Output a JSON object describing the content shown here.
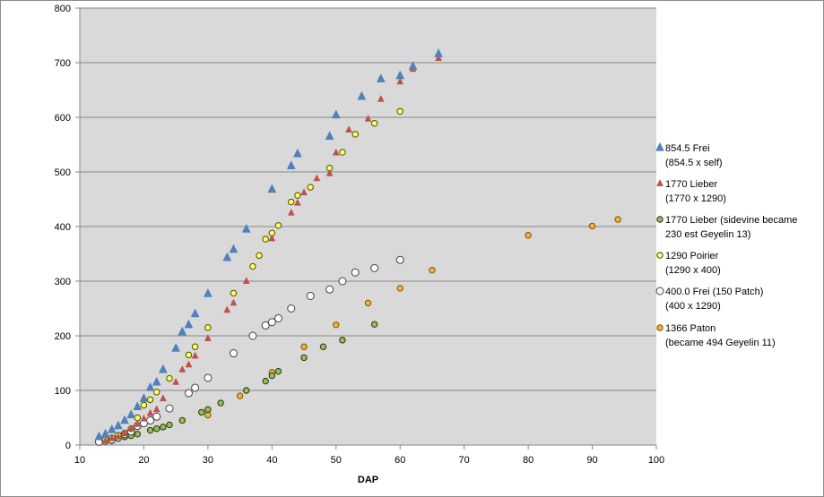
{
  "chart_data": {
    "type": "scatter",
    "title": "",
    "xlabel": "DAP",
    "ylabel": "",
    "xlim": [
      10,
      100
    ],
    "ylim": [
      0,
      800
    ],
    "x_ticks": [
      10,
      20,
      30,
      40,
      50,
      60,
      70,
      80,
      90,
      100
    ],
    "y_ticks": [
      0,
      100,
      200,
      300,
      400,
      500,
      600,
      700,
      800
    ],
    "grid": "horizontal",
    "plot_background": "#d9d9d9",
    "legend_position": "right",
    "series": [
      {
        "name_lines": [
          "854.5 Frei",
          "(854.5 x self)"
        ],
        "marker": "triangle",
        "fill": "#4f81bd",
        "stroke": "#4f81bd",
        "points": [
          [
            13,
            15
          ],
          [
            14,
            20
          ],
          [
            15,
            28
          ],
          [
            16,
            35
          ],
          [
            17,
            45
          ],
          [
            18,
            55
          ],
          [
            19,
            70
          ],
          [
            20,
            85
          ],
          [
            21,
            105
          ],
          [
            22,
            115
          ],
          [
            23,
            138
          ],
          [
            25,
            177
          ],
          [
            26,
            207
          ],
          [
            27,
            220
          ],
          [
            28,
            240
          ],
          [
            30,
            277
          ],
          [
            33,
            343
          ],
          [
            34,
            358
          ],
          [
            36,
            395
          ],
          [
            40,
            468
          ],
          [
            43,
            511
          ],
          [
            44,
            533
          ],
          [
            49,
            565
          ],
          [
            50,
            604
          ],
          [
            54,
            638
          ],
          [
            57,
            670
          ],
          [
            60,
            676
          ],
          [
            62,
            693
          ],
          [
            66,
            716
          ]
        ]
      },
      {
        "name_lines": [
          "1770 Lieber",
          "(1770 x 1290)"
        ],
        "marker": "triangle-small",
        "fill": "#c0504d",
        "stroke": "#c0504d",
        "points": [
          [
            14,
            8
          ],
          [
            15,
            12
          ],
          [
            16,
            15
          ],
          [
            17,
            22
          ],
          [
            18,
            30
          ],
          [
            19,
            38
          ],
          [
            20,
            48
          ],
          [
            21,
            58
          ],
          [
            22,
            65
          ],
          [
            23,
            85
          ],
          [
            25,
            115
          ],
          [
            26,
            138
          ],
          [
            27,
            147
          ],
          [
            28,
            163
          ],
          [
            30,
            195
          ],
          [
            33,
            247
          ],
          [
            34,
            260
          ],
          [
            36,
            300
          ],
          [
            40,
            378
          ],
          [
            43,
            425
          ],
          [
            44,
            443
          ],
          [
            45,
            462
          ],
          [
            47,
            488
          ],
          [
            49,
            497
          ],
          [
            50,
            535
          ],
          [
            52,
            577
          ],
          [
            55,
            597
          ],
          [
            57,
            633
          ],
          [
            60,
            665
          ],
          [
            62,
            688
          ],
          [
            66,
            708
          ]
        ]
      },
      {
        "name_lines": [
          "1770 Lieber (sidevine became",
          "230 est Geyelin 13)"
        ],
        "marker": "circle",
        "fill": "#9bbb59",
        "stroke": "#1e3a10",
        "points": [
          [
            13,
            5
          ],
          [
            14,
            7
          ],
          [
            15,
            8
          ],
          [
            16,
            12
          ],
          [
            17,
            15
          ],
          [
            18,
            17
          ],
          [
            19,
            20
          ],
          [
            21,
            27
          ],
          [
            22,
            30
          ],
          [
            23,
            33
          ],
          [
            24,
            37
          ],
          [
            26,
            45
          ],
          [
            29,
            60
          ],
          [
            30,
            65
          ],
          [
            32,
            77
          ],
          [
            36,
            100
          ],
          [
            39,
            117
          ],
          [
            40,
            127
          ],
          [
            41,
            135
          ],
          [
            45,
            160
          ],
          [
            48,
            180
          ],
          [
            51,
            192
          ],
          [
            56,
            221
          ]
        ]
      },
      {
        "name_lines": [
          "1290 Poirier",
          "(1290 x 400)"
        ],
        "marker": "circle",
        "fill": "#ffff66",
        "stroke": "#4d4d00",
        "points": [
          [
            14,
            10
          ],
          [
            15,
            13
          ],
          [
            16,
            18
          ],
          [
            17,
            22
          ],
          [
            18,
            30
          ],
          [
            19,
            50
          ],
          [
            20,
            73
          ],
          [
            21,
            83
          ],
          [
            22,
            97
          ],
          [
            24,
            122
          ],
          [
            27,
            165
          ],
          [
            28,
            180
          ],
          [
            30,
            215
          ],
          [
            34,
            278
          ],
          [
            37,
            327
          ],
          [
            38,
            347
          ],
          [
            39,
            377
          ],
          [
            40,
            388
          ],
          [
            41,
            402
          ],
          [
            43,
            445
          ],
          [
            44,
            457
          ],
          [
            46,
            472
          ],
          [
            49,
            507
          ],
          [
            51,
            536
          ],
          [
            53,
            569
          ],
          [
            56,
            589
          ],
          [
            60,
            611
          ]
        ]
      },
      {
        "name_lines": [
          "400.0 Frei (150 Patch)",
          "(400 x 1290)"
        ],
        "marker": "circle",
        "fill": "#ffffff",
        "stroke": "#404040",
        "points": [
          [
            13,
            6
          ],
          [
            14,
            8
          ],
          [
            15,
            10
          ],
          [
            16,
            14
          ],
          [
            17,
            20
          ],
          [
            18,
            25
          ],
          [
            19,
            35
          ],
          [
            20,
            40
          ],
          [
            21,
            45
          ],
          [
            22,
            52
          ],
          [
            24,
            67
          ],
          [
            27,
            95
          ],
          [
            28,
            105
          ],
          [
            30,
            123
          ],
          [
            34,
            168
          ],
          [
            37,
            200
          ],
          [
            39,
            219
          ],
          [
            40,
            225
          ],
          [
            41,
            232
          ],
          [
            43,
            250
          ],
          [
            46,
            273
          ],
          [
            49,
            285
          ],
          [
            51,
            300
          ],
          [
            53,
            316
          ],
          [
            56,
            324
          ],
          [
            60,
            339
          ]
        ]
      },
      {
        "name_lines": [
          "1366 Paton",
          "(became 494 Geyelin 11)"
        ],
        "marker": "circle",
        "fill": "#f2b233",
        "stroke": "#7f5200",
        "points": [
          [
            30,
            55
          ],
          [
            35,
            90
          ],
          [
            40,
            133
          ],
          [
            45,
            180
          ],
          [
            50,
            220
          ],
          [
            55,
            260
          ],
          [
            60,
            287
          ],
          [
            65,
            320
          ],
          [
            80,
            384
          ],
          [
            90,
            401
          ],
          [
            94,
            413
          ]
        ]
      }
    ]
  }
}
